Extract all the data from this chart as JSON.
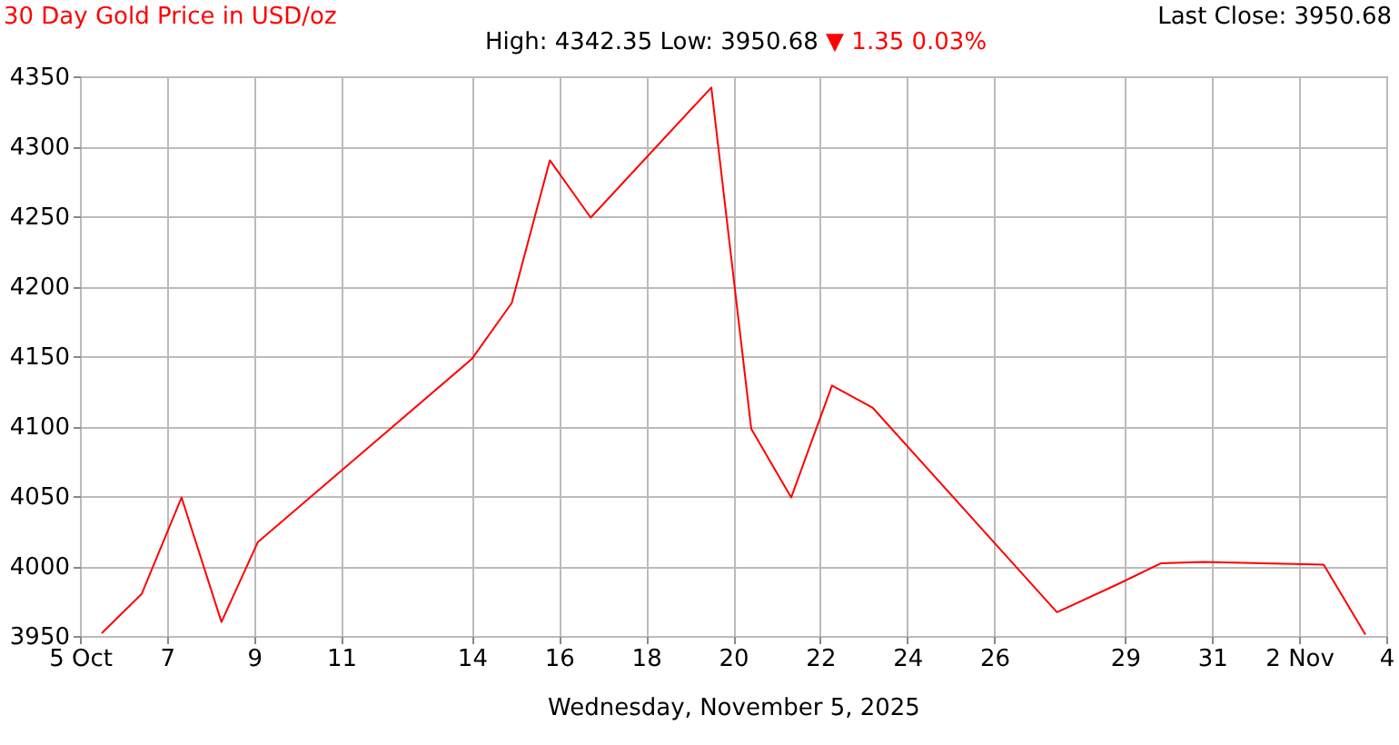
{
  "chart_data": {
    "type": "line",
    "title": "30 Day Gold Price in USD/oz",
    "subtitle": "High: 4342.35 Low: 3950.68",
    "annotations": [
      "Last Close: 3950.68",
      "▼ 1.35 0.03%"
    ],
    "xlabel": "Wednesday, November 5, 2025",
    "x": [
      "2025-10-05T12:00",
      "2025-10-06T10:00",
      "2025-10-07T08:00",
      "2025-10-08T06:00",
      "2025-10-09T02:00",
      "2025-10-14T00:00",
      "2025-10-14T22:00",
      "2025-10-15T19:00",
      "2025-10-16T17:30",
      "2025-10-19T12:00",
      "2025-10-20T10:00",
      "2025-10-21T08:00",
      "2025-10-22T06:30",
      "2025-10-23T05:00",
      "2025-10-27T10:30",
      "2025-10-28T20:00",
      "2025-10-29T20:00",
      "2025-10-30T19:00",
      "2025-11-02T13:30",
      "2025-11-03T12:30"
    ],
    "series": [
      {
        "color": "#ff0000",
        "values": [
          3952,
          3980,
          4049,
          3960,
          4017,
          4148,
          4188,
          4290,
          4249,
          4342,
          4098,
          4049,
          4129,
          4113,
          3967,
          3987,
          4002,
          4003,
          4001,
          3951
        ]
      }
    ],
    "xlim": [
      "2025-10-05",
      "2025-11-04"
    ],
    "xticks": [
      {
        "value": "2025-10-05",
        "label": "5 Oct"
      },
      {
        "value": "2025-10-07",
        "label": "7"
      },
      {
        "value": "2025-10-09",
        "label": "9"
      },
      {
        "value": "2025-10-11",
        "label": "11"
      },
      {
        "value": "2025-10-14",
        "label": "14"
      },
      {
        "value": "2025-10-16",
        "label": "16"
      },
      {
        "value": "2025-10-18",
        "label": "18"
      },
      {
        "value": "2025-10-20",
        "label": "20"
      },
      {
        "value": "2025-10-22",
        "label": "22"
      },
      {
        "value": "2025-10-24",
        "label": "24"
      },
      {
        "value": "2025-10-26",
        "label": "26"
      },
      {
        "value": "2025-10-29",
        "label": "29"
      },
      {
        "value": "2025-10-31",
        "label": "31"
      },
      {
        "value": "2025-11-02",
        "label": "2 Nov"
      },
      {
        "value": "2025-11-04",
        "label": "4"
      }
    ],
    "ylim": [
      3950,
      4350
    ],
    "yticks": [
      3950,
      4000,
      4050,
      4100,
      4150,
      4200,
      4250,
      4300,
      4350
    ],
    "grid": true,
    "legend": false
  }
}
